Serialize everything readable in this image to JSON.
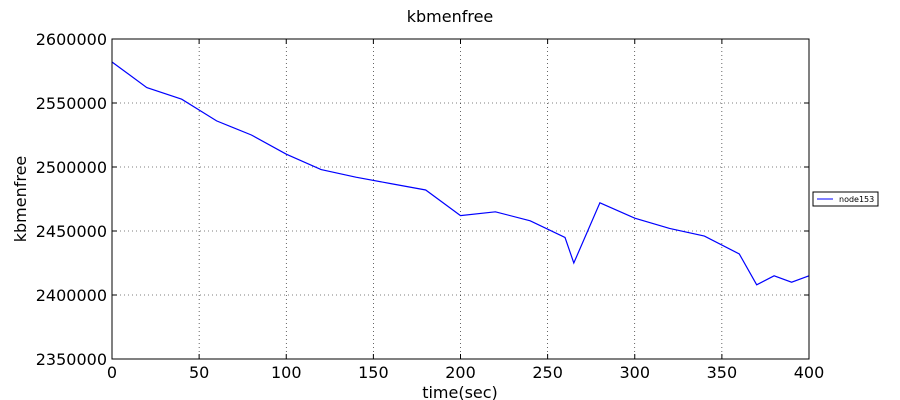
{
  "chart_data": {
    "type": "line",
    "title": "kbmenfree",
    "xlabel": "time(sec)",
    "ylabel": "kbmenfree",
    "xlim": [
      0,
      400
    ],
    "ylim": [
      2350000,
      2600000
    ],
    "xticks": [
      "0",
      "50",
      "100",
      "150",
      "200",
      "250",
      "300",
      "350",
      "400"
    ],
    "yticks": [
      "2350000",
      "2400000",
      "2450000",
      "2500000",
      "2550000",
      "2600000"
    ],
    "grid": true,
    "legend": {
      "position": "right",
      "entries": [
        "node153"
      ]
    },
    "series": [
      {
        "name": "node153",
        "color": "#0000ff",
        "x": [
          0,
          20,
          40,
          60,
          80,
          100,
          120,
          140,
          160,
          180,
          200,
          220,
          240,
          260,
          265,
          280,
          300,
          320,
          340,
          360,
          370,
          380,
          390,
          400
        ],
        "values": [
          2582000,
          2562000,
          2553000,
          2536000,
          2525000,
          2510000,
          2498000,
          2492000,
          2487000,
          2482000,
          2462000,
          2465000,
          2458000,
          2445000,
          2425000,
          2472000,
          2460000,
          2452000,
          2446000,
          2432000,
          2408000,
          2415000,
          2410000,
          2415000
        ]
      }
    ]
  }
}
